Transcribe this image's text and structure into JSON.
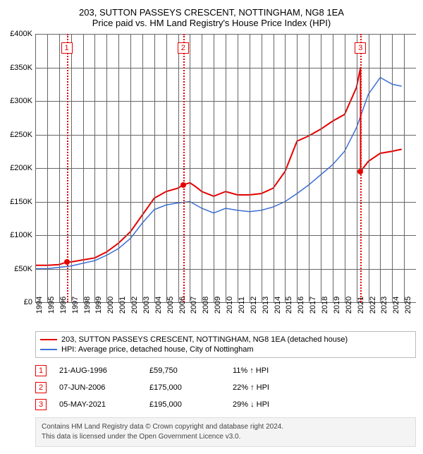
{
  "title": "203, SUTTON PASSEYS CRESCENT, NOTTINGHAM, NG8 1EA",
  "subtitle": "Price paid vs. HM Land Registry's House Price Index (HPI)",
  "chart": {
    "type": "line",
    "background_color": "#ffffff",
    "grid_color": "#666666",
    "xlim": [
      1994,
      2026
    ],
    "ylim": [
      0,
      400000
    ],
    "ytick_step": 50000,
    "yticks": [
      0,
      50000,
      100000,
      150000,
      200000,
      250000,
      300000,
      350000,
      400000
    ],
    "ytick_labels": [
      "£0",
      "£50K",
      "£100K",
      "£150K",
      "£200K",
      "£250K",
      "£300K",
      "£350K",
      "£400K"
    ],
    "xticks": [
      1994,
      1995,
      1996,
      1997,
      1998,
      1999,
      2000,
      2001,
      2002,
      2003,
      2004,
      2005,
      2006,
      2007,
      2008,
      2009,
      2010,
      2011,
      2012,
      2013,
      2014,
      2015,
      2016,
      2017,
      2018,
      2019,
      2020,
      2021,
      2022,
      2023,
      2024,
      2025
    ],
    "label_fontsize": 11
  },
  "series": {
    "property": {
      "label": "203, SUTTON PASSEYS CRESCENT, NOTTINGHAM, NG8 1EA (detached house)",
      "color": "#e60000",
      "line_width": 2,
      "points": [
        [
          1994,
          55000
        ],
        [
          1995,
          55000
        ],
        [
          1996,
          56000
        ],
        [
          1996.64,
          59750
        ],
        [
          1997,
          60000
        ],
        [
          1998,
          63000
        ],
        [
          1999,
          66000
        ],
        [
          2000,
          75000
        ],
        [
          2001,
          88000
        ],
        [
          2002,
          105000
        ],
        [
          2003,
          130000
        ],
        [
          2004,
          155000
        ],
        [
          2005,
          165000
        ],
        [
          2006,
          170000
        ],
        [
          2006.43,
          175000
        ],
        [
          2007,
          178000
        ],
        [
          2007.5,
          172000
        ],
        [
          2008,
          165000
        ],
        [
          2009,
          158000
        ],
        [
          2010,
          165000
        ],
        [
          2011,
          160000
        ],
        [
          2012,
          160000
        ],
        [
          2013,
          162000
        ],
        [
          2014,
          170000
        ],
        [
          2015,
          195000
        ],
        [
          2016,
          240000
        ],
        [
          2017,
          248000
        ],
        [
          2018,
          258000
        ],
        [
          2019,
          270000
        ],
        [
          2020,
          280000
        ],
        [
          2021,
          320000
        ],
        [
          2021.34,
          350000
        ],
        [
          2021.35,
          195000
        ],
        [
          2022,
          210000
        ],
        [
          2023,
          222000
        ],
        [
          2024,
          225000
        ],
        [
          2024.8,
          228000
        ]
      ]
    },
    "hpi": {
      "label": "HPI: Average price, detached house, City of Nottingham",
      "color": "#3a6fd8",
      "line_width": 1.5,
      "points": [
        [
          1994,
          50000
        ],
        [
          1995,
          50000
        ],
        [
          1996,
          52000
        ],
        [
          1997,
          54000
        ],
        [
          1998,
          58000
        ],
        [
          1999,
          62000
        ],
        [
          2000,
          70000
        ],
        [
          2001,
          80000
        ],
        [
          2002,
          95000
        ],
        [
          2003,
          118000
        ],
        [
          2004,
          138000
        ],
        [
          2005,
          145000
        ],
        [
          2006,
          148000
        ],
        [
          2007,
          150000
        ],
        [
          2008,
          140000
        ],
        [
          2009,
          133000
        ],
        [
          2010,
          140000
        ],
        [
          2011,
          137000
        ],
        [
          2012,
          135000
        ],
        [
          2013,
          137000
        ],
        [
          2014,
          142000
        ],
        [
          2015,
          150000
        ],
        [
          2016,
          162000
        ],
        [
          2017,
          175000
        ],
        [
          2018,
          190000
        ],
        [
          2019,
          205000
        ],
        [
          2020,
          225000
        ],
        [
          2021,
          260000
        ],
        [
          2022,
          310000
        ],
        [
          2023,
          335000
        ],
        [
          2024,
          325000
        ],
        [
          2024.8,
          322000
        ]
      ]
    }
  },
  "sales": [
    {
      "n": "1",
      "year": 1996.64,
      "date": "21-AUG-1996",
      "price_val": 59750,
      "price": "£59,750",
      "diff": "11%",
      "dir": "↑",
      "diff_to": "HPI"
    },
    {
      "n": "2",
      "year": 2006.43,
      "date": "07-JUN-2006",
      "price_val": 175000,
      "price": "£175,000",
      "diff": "22%",
      "dir": "↑",
      "diff_to": "HPI"
    },
    {
      "n": "3",
      "year": 2021.34,
      "date": "05-MAY-2021",
      "price_val": 195000,
      "price": "£195,000",
      "diff": "29%",
      "dir": "↓",
      "diff_to": "HPI"
    }
  ],
  "marker_line_color": "#e60000",
  "footer": {
    "line1": "Contains HM Land Registry data © Crown copyright and database right 2024.",
    "line2": "This data is licensed under the Open Government Licence v3.0."
  }
}
